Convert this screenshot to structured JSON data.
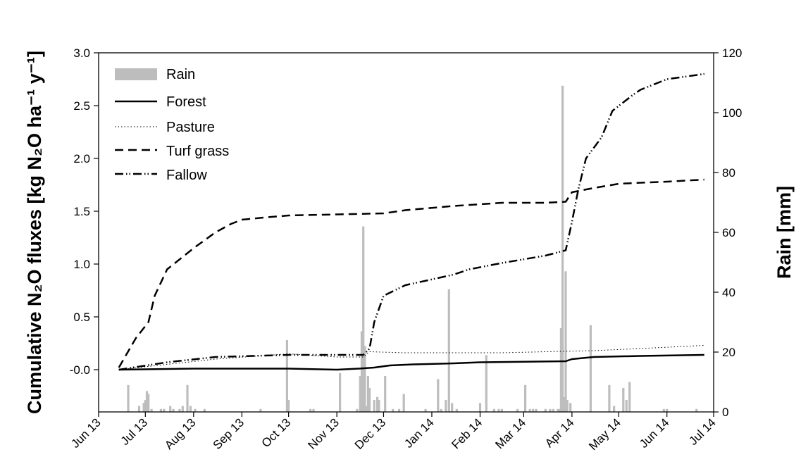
{
  "chart_data": {
    "type": "line",
    "ylabel_left": "Cumulative N₂O fluxes [kg N₂O ha⁻¹ y⁻¹]",
    "ylabel_right": "Rain [mm]",
    "xlabel": "",
    "x_axis": {
      "type": "date",
      "range": [
        "2013-06-01",
        "2014-07-01"
      ],
      "tick_labels": [
        "Jun 13",
        "Jul 13",
        "Aug 13",
        "Sep 13",
        "Oct 13",
        "Nov 13",
        "Dec 13",
        "Jan 14",
        "Feb 14",
        "Mar 14",
        "Apr 14",
        "May 14",
        "Jun 14",
        "Jul 14"
      ]
    },
    "y_left": {
      "range": [
        -0.4,
        3.0
      ],
      "ticks": [
        "-0.0",
        "0.5",
        "1.0",
        "1.5",
        "2.0",
        "2.5",
        "3.0"
      ]
    },
    "y_right": {
      "range": [
        0,
        120
      ],
      "ticks": [
        "0",
        "20",
        "40",
        "60",
        "80",
        "100",
        "120"
      ]
    },
    "grid": false,
    "legend": {
      "position": "top-left",
      "entries": [
        "Rain",
        "Forest",
        "Pasture",
        "Turf grass",
        "Fallow"
      ]
    },
    "colors": {
      "rain": "#bdbdbd",
      "lines": "#000000"
    },
    "series": [
      {
        "name": "Forest",
        "style": "solid",
        "points": [
          [
            "2013-06-14",
            0.0
          ],
          [
            "2013-08-01",
            0.01
          ],
          [
            "2013-10-01",
            0.01
          ],
          [
            "2013-11-01",
            0.0
          ],
          [
            "2013-11-15",
            0.01
          ],
          [
            "2013-11-25",
            0.02
          ],
          [
            "2013-12-05",
            0.04
          ],
          [
            "2013-12-20",
            0.05
          ],
          [
            "2014-01-15",
            0.06
          ],
          [
            "2014-02-01",
            0.07
          ],
          [
            "2014-03-01",
            0.075
          ],
          [
            "2014-03-28",
            0.08
          ],
          [
            "2014-04-01",
            0.1
          ],
          [
            "2014-04-15",
            0.12
          ],
          [
            "2014-05-15",
            0.13
          ],
          [
            "2014-06-25",
            0.14
          ]
        ]
      },
      {
        "name": "Pasture",
        "style": "dotted",
        "points": [
          [
            "2013-06-14",
            0.0
          ],
          [
            "2013-07-15",
            0.05
          ],
          [
            "2013-08-15",
            0.1
          ],
          [
            "2013-10-01",
            0.15
          ],
          [
            "2013-11-01",
            0.12
          ],
          [
            "2013-11-18",
            0.12
          ],
          [
            "2013-11-22",
            0.17
          ],
          [
            "2013-12-15",
            0.16
          ],
          [
            "2014-01-15",
            0.16
          ],
          [
            "2014-02-15",
            0.16
          ],
          [
            "2014-03-15",
            0.17
          ],
          [
            "2014-04-15",
            0.18
          ],
          [
            "2014-05-15",
            0.2
          ],
          [
            "2014-06-25",
            0.23
          ]
        ]
      },
      {
        "name": "Turf grass",
        "style": "dashed",
        "points": [
          [
            "2013-06-14",
            0.02
          ],
          [
            "2013-06-25",
            0.3
          ],
          [
            "2013-07-03",
            0.45
          ],
          [
            "2013-07-07",
            0.7
          ],
          [
            "2013-07-15",
            0.95
          ],
          [
            "2013-08-01",
            1.15
          ],
          [
            "2013-08-15",
            1.3
          ],
          [
            "2013-08-25",
            1.38
          ],
          [
            "2013-09-01",
            1.42
          ],
          [
            "2013-09-15",
            1.44
          ],
          [
            "2013-10-01",
            1.46
          ],
          [
            "2013-11-01",
            1.47
          ],
          [
            "2013-12-01",
            1.48
          ],
          [
            "2013-12-15",
            1.51
          ],
          [
            "2014-01-15",
            1.55
          ],
          [
            "2014-02-15",
            1.58
          ],
          [
            "2014-03-15",
            1.58
          ],
          [
            "2014-03-28",
            1.59
          ],
          [
            "2014-04-01",
            1.68
          ],
          [
            "2014-04-15",
            1.72
          ],
          [
            "2014-05-01",
            1.76
          ],
          [
            "2014-05-15",
            1.77
          ],
          [
            "2014-06-01",
            1.78
          ],
          [
            "2014-06-25",
            1.8
          ]
        ]
      },
      {
        "name": "Fallow",
        "style": "dash-dot-dot",
        "points": [
          [
            "2013-06-14",
            0.0
          ],
          [
            "2013-07-15",
            0.07
          ],
          [
            "2013-08-15",
            0.12
          ],
          [
            "2013-10-01",
            0.14
          ],
          [
            "2013-11-18",
            0.14
          ],
          [
            "2013-11-22",
            0.2
          ],
          [
            "2013-11-25",
            0.45
          ],
          [
            "2013-12-01",
            0.7
          ],
          [
            "2013-12-15",
            0.8
          ],
          [
            "2014-01-15",
            0.9
          ],
          [
            "2014-01-25",
            0.95
          ],
          [
            "2014-02-15",
            1.01
          ],
          [
            "2014-03-15",
            1.08
          ],
          [
            "2014-03-28",
            1.13
          ],
          [
            "2014-04-01",
            1.4
          ],
          [
            "2014-04-05",
            1.7
          ],
          [
            "2014-04-10",
            2.0
          ],
          [
            "2014-04-20",
            2.2
          ],
          [
            "2014-04-27",
            2.45
          ],
          [
            "2014-05-10",
            2.6
          ],
          [
            "2014-05-15",
            2.65
          ],
          [
            "2014-06-01",
            2.75
          ],
          [
            "2014-06-25",
            2.8
          ]
        ]
      }
    ],
    "rain": {
      "name": "Rain",
      "bars": [
        [
          "2013-06-20",
          9
        ],
        [
          "2013-06-27",
          2
        ],
        [
          "2013-06-30",
          3
        ],
        [
          "2013-07-01",
          4
        ],
        [
          "2013-07-02",
          7
        ],
        [
          "2013-07-03",
          6
        ],
        [
          "2013-07-05",
          1
        ],
        [
          "2013-07-11",
          1
        ],
        [
          "2013-07-13",
          1
        ],
        [
          "2013-07-17",
          2
        ],
        [
          "2013-07-19",
          1
        ],
        [
          "2013-07-23",
          1
        ],
        [
          "2013-07-25",
          2
        ],
        [
          "2013-07-28",
          9
        ],
        [
          "2013-07-30",
          2
        ],
        [
          "2013-08-02",
          1
        ],
        [
          "2013-08-08",
          1
        ],
        [
          "2013-09-13",
          1
        ],
        [
          "2013-09-30",
          24
        ],
        [
          "2013-10-01",
          4
        ],
        [
          "2013-10-15",
          1
        ],
        [
          "2013-10-17",
          1
        ],
        [
          "2013-11-03",
          13
        ],
        [
          "2013-11-14",
          1
        ],
        [
          "2013-11-28",
          4
        ],
        [
          "2013-12-02",
          12
        ],
        [
          "2013-12-07",
          1
        ],
        [
          "2013-12-11",
          1
        ],
        [
          "2013-11-16",
          12
        ],
        [
          "2013-11-17",
          27
        ],
        [
          "2013-11-18",
          62
        ],
        [
          "2013-11-19",
          22
        ],
        [
          "2013-11-20",
          2
        ],
        [
          "2013-11-21",
          12
        ],
        [
          "2013-11-22",
          8
        ],
        [
          "2013-11-25",
          4
        ],
        [
          "2013-11-27",
          5
        ],
        [
          "2013-12-14",
          6
        ],
        [
          "2013-12-28",
          1
        ],
        [
          "2014-01-05",
          11
        ],
        [
          "2014-01-07",
          1
        ],
        [
          "2014-01-10",
          4
        ],
        [
          "2014-01-12",
          41
        ],
        [
          "2014-01-14",
          3
        ],
        [
          "2014-01-17",
          1
        ],
        [
          "2014-02-01",
          3
        ],
        [
          "2014-02-05",
          19
        ],
        [
          "2014-02-10",
          1
        ],
        [
          "2014-02-13",
          1
        ],
        [
          "2014-02-15",
          1
        ],
        [
          "2014-02-25",
          1
        ],
        [
          "2014-03-02",
          9
        ],
        [
          "2014-03-05",
          1
        ],
        [
          "2014-03-07",
          1
        ],
        [
          "2014-03-09",
          1
        ],
        [
          "2014-03-15",
          1
        ],
        [
          "2014-03-18",
          1
        ],
        [
          "2014-03-20",
          1
        ],
        [
          "2014-03-23",
          1
        ],
        [
          "2014-03-24",
          1
        ],
        [
          "2014-03-25",
          28
        ],
        [
          "2014-03-26",
          109
        ],
        [
          "2014-03-27",
          5
        ],
        [
          "2014-03-28",
          47
        ],
        [
          "2014-03-29",
          4
        ],
        [
          "2014-03-31",
          3
        ],
        [
          "2014-04-13",
          29
        ],
        [
          "2014-04-25",
          9
        ],
        [
          "2014-04-28",
          2
        ],
        [
          "2014-05-04",
          8
        ],
        [
          "2014-05-06",
          4
        ],
        [
          "2014-05-08",
          10
        ],
        [
          "2014-05-30",
          1
        ],
        [
          "2014-06-01",
          1
        ],
        [
          "2014-06-20",
          1
        ]
      ]
    }
  }
}
